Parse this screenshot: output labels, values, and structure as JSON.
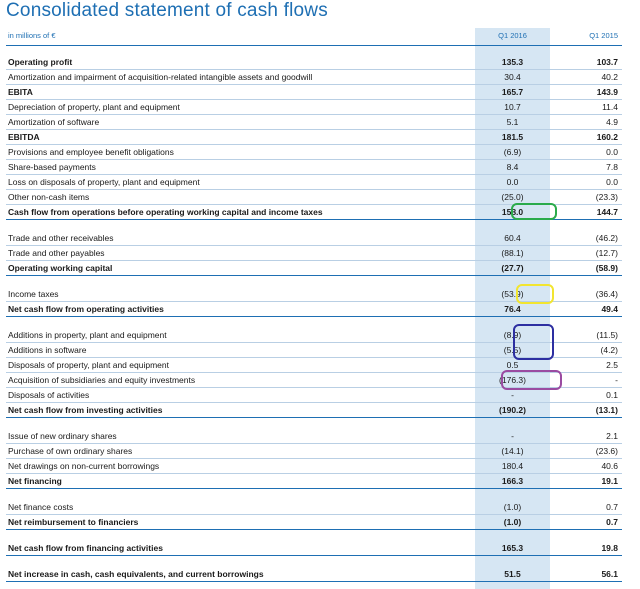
{
  "title": "Consolidated statement of cash flows",
  "header": {
    "units": "in millions of €",
    "col_q1_2016": "Q1 2016",
    "col_q1_2015": "Q1 2015"
  },
  "rows": [
    {
      "label": "Operating profit",
      "q1_2016": "135.3",
      "q1_2015": "103.7",
      "bold": true
    },
    {
      "label": "Amortization and impairment of acquisition-related intangible assets and goodwill",
      "q1_2016": "30.4",
      "q1_2015": "40.2",
      "bold": false
    },
    {
      "label": "EBITA",
      "q1_2016": "165.7",
      "q1_2015": "143.9",
      "bold": true
    },
    {
      "label": "Depreciation of property, plant and equipment",
      "q1_2016": "10.7",
      "q1_2015": "11.4",
      "bold": false
    },
    {
      "label": "Amortization of software",
      "q1_2016": "5.1",
      "q1_2015": "4.9",
      "bold": false
    },
    {
      "label": "EBITDA",
      "q1_2016": "181.5",
      "q1_2015": "160.2",
      "bold": true
    },
    {
      "label": "Provisions and employee benefit obligations",
      "q1_2016": "(6.9)",
      "q1_2015": "0.0",
      "bold": false
    },
    {
      "label": "Share-based payments",
      "q1_2016": "8.4",
      "q1_2015": "7.8",
      "bold": false
    },
    {
      "label": "Loss on disposals of property, plant and equipment",
      "q1_2016": "0.0",
      "q1_2015": "0.0",
      "bold": false
    },
    {
      "label": "Other non-cash items",
      "q1_2016": "(25.0)",
      "q1_2015": "(23.3)",
      "bold": false
    },
    {
      "label": "Cash flow from operations before operating working capital and income taxes",
      "q1_2016": "158.0",
      "q1_2015": "144.7",
      "bold": true
    },
    {
      "label": "Trade and other receivables",
      "q1_2016": "60.4",
      "q1_2015": "(46.2)",
      "bold": false
    },
    {
      "label": "Trade and other payables",
      "q1_2016": "(88.1)",
      "q1_2015": "(12.7)",
      "bold": false
    },
    {
      "label": "Operating working capital",
      "q1_2016": "(27.7)",
      "q1_2015": "(58.9)",
      "bold": true
    },
    {
      "label": "Income taxes",
      "q1_2016": "(53.9)",
      "q1_2015": "(36.4)",
      "bold": false
    },
    {
      "label": "Net cash flow from operating activities",
      "q1_2016": "76.4",
      "q1_2015": "49.4",
      "bold": true
    },
    {
      "label": "Additions in property, plant and equipment",
      "q1_2016": "(8.9)",
      "q1_2015": "(11.5)",
      "bold": false
    },
    {
      "label": "Additions in software",
      "q1_2016": "(5.5)",
      "q1_2015": "(4.2)",
      "bold": false
    },
    {
      "label": "Disposals of property, plant and equipment",
      "q1_2016": "0.5",
      "q1_2015": "2.5",
      "bold": false
    },
    {
      "label": "Acquisition of subsidiaries and equity investments",
      "q1_2016": "(176.3)",
      "q1_2015": "-",
      "bold": false
    },
    {
      "label": "Disposals of activities",
      "q1_2016": "-",
      "q1_2015": "0.1",
      "bold": false
    },
    {
      "label": "Net cash flow from investing activities",
      "q1_2016": "(190.2)",
      "q1_2015": "(13.1)",
      "bold": true
    },
    {
      "label": "Issue of new ordinary shares",
      "q1_2016": "-",
      "q1_2015": "2.1",
      "bold": false
    },
    {
      "label": "Purchase of own ordinary shares",
      "q1_2016": "(14.1)",
      "q1_2015": "(23.6)",
      "bold": false
    },
    {
      "label": "Net drawings on non-current borrowings",
      "q1_2016": "180.4",
      "q1_2015": "40.6",
      "bold": false
    },
    {
      "label": "Net financing",
      "q1_2016": "166.3",
      "q1_2015": "19.1",
      "bold": true
    },
    {
      "label": "Net finance costs",
      "q1_2016": "(1.0)",
      "q1_2015": "0.7",
      "bold": false
    },
    {
      "label": "Net reimbursement to financiers",
      "q1_2016": "(1.0)",
      "q1_2015": "0.7",
      "bold": true
    },
    {
      "label": "Net cash flow from financing activities",
      "q1_2016": "165.3",
      "q1_2015": "19.8",
      "bold": true
    },
    {
      "label": "Net increase in cash, cash equivalents, and current borrowings",
      "q1_2016": "51.5",
      "q1_2015": "56.1",
      "bold": true
    }
  ],
  "highlights": [
    {
      "name": "green-highlight-circle",
      "color": "#2bab4b"
    },
    {
      "name": "yellow-highlight-circle",
      "color": "#f2e530"
    },
    {
      "name": "blue-highlight-circle",
      "color": "#2d2fa1"
    },
    {
      "name": "purple-highlight-circle",
      "color": "#9a4ba1"
    }
  ]
}
